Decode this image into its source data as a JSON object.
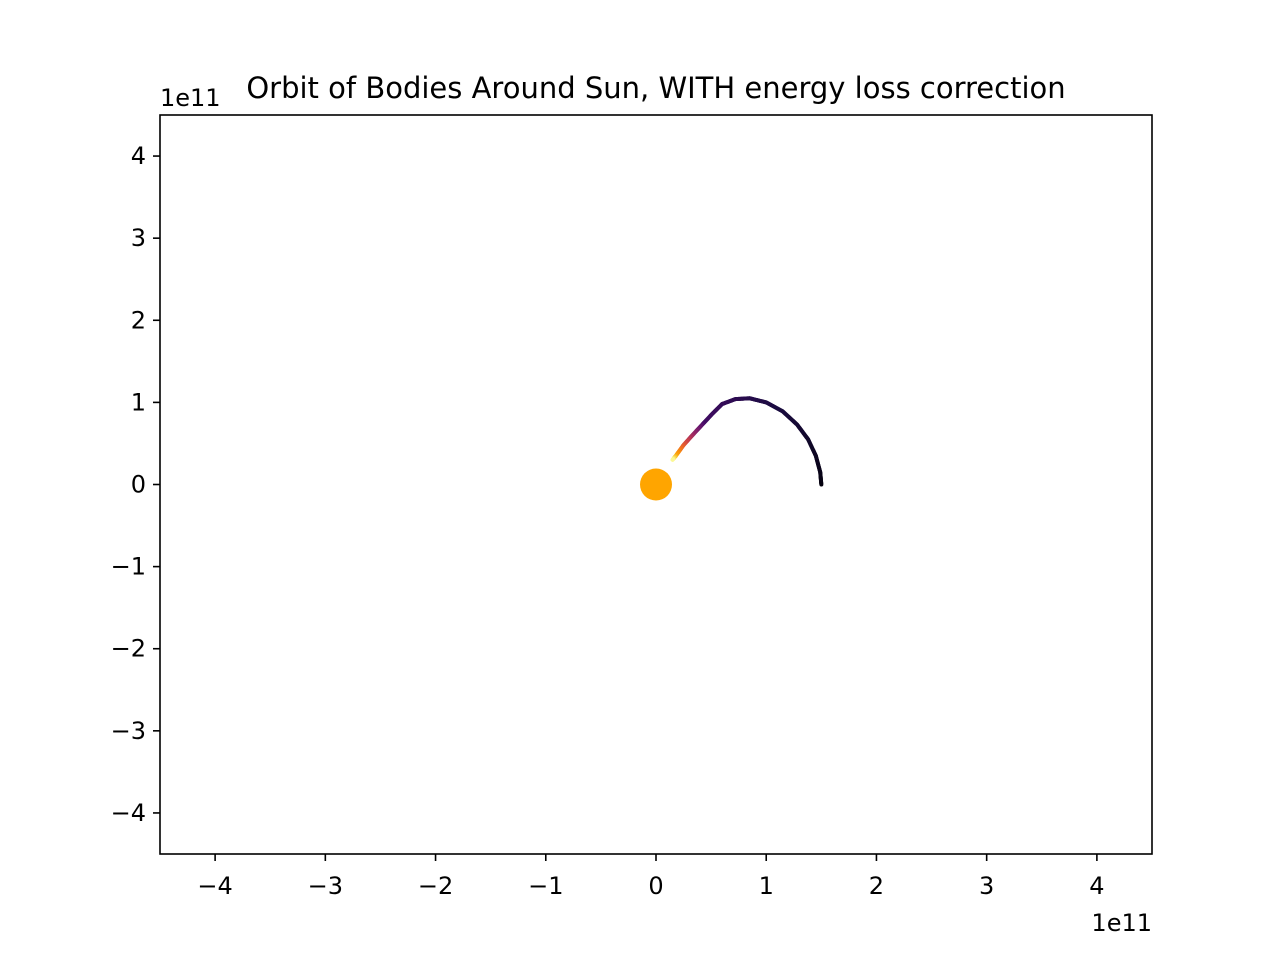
{
  "chart_data": {
    "type": "scatter",
    "title": "Orbit of Bodies Around Sun, WITH energy loss correction",
    "xlabel": "",
    "ylabel": "",
    "xlim": [
      -450000000000.0,
      450000000000.0
    ],
    "ylim": [
      -450000000000.0,
      450000000000.0
    ],
    "x_offset_label": "1e11",
    "y_offset_label": "1e11",
    "x_ticks": [
      -4,
      -3,
      -2,
      -1,
      0,
      1,
      2,
      3,
      4
    ],
    "y_ticks": [
      -4,
      -3,
      -2,
      -1,
      0,
      1,
      2,
      3,
      4
    ],
    "x_tick_labels": [
      "−4",
      "−3",
      "−2",
      "−1",
      "0",
      "1",
      "2",
      "3",
      "4"
    ],
    "y_tick_labels": [
      "−4",
      "−3",
      "−2",
      "−1",
      "0",
      "1",
      "2",
      "3",
      "4"
    ],
    "grid": false,
    "legend": "none",
    "colormap": "inferno",
    "colormap_stops": [
      "#000004",
      "#1b0c41",
      "#4a0c6b",
      "#781c6d",
      "#a52c60",
      "#cf4446",
      "#ed6925",
      "#fb9b06",
      "#f7d13d",
      "#fcffa4"
    ],
    "sun": {
      "x": 0,
      "y": 0,
      "color": "#ffa500"
    },
    "orbit_path": [
      {
        "x": 150000000000.0,
        "y": 0.0
      },
      {
        "x": 149000000000.0,
        "y": 15000000000.0
      },
      {
        "x": 145000000000.0,
        "y": 35000000000.0
      },
      {
        "x": 138000000000.0,
        "y": 55000000000.0
      },
      {
        "x": 128000000000.0,
        "y": 73000000000.0
      },
      {
        "x": 115000000000.0,
        "y": 89000000000.0
      },
      {
        "x": 100000000000.0,
        "y": 100000000000.0
      },
      {
        "x": 85000000000.0,
        "y": 105000000000.0
      },
      {
        "x": 72000000000.0,
        "y": 104000000000.0
      },
      {
        "x": 60000000000.0,
        "y": 98000000000.0
      },
      {
        "x": 51000000000.0,
        "y": 86000000000.0
      },
      {
        "x": 42000000000.0,
        "y": 73000000000.0
      },
      {
        "x": 33000000000.0,
        "y": 60000000000.0
      },
      {
        "x": 25000000000.0,
        "y": 48000000000.0
      },
      {
        "x": 18000000000.0,
        "y": 35000000000.0
      },
      {
        "x": 15000000000.0,
        "y": 30000000000.0
      }
    ]
  }
}
